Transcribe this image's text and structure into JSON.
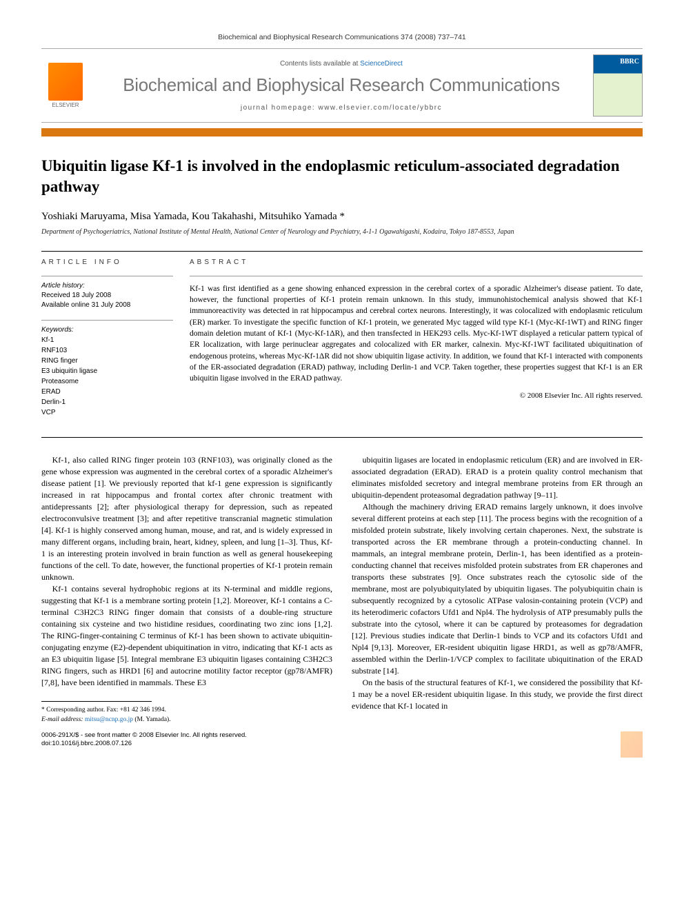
{
  "header": {
    "citation": "Biochemical and Biophysical Research Communications 374 (2008) 737–741",
    "contents_prefix": "Contents lists available at ",
    "contents_link": "ScienceDirect",
    "journal_name": "Biochemical and Biophysical Research Communications",
    "homepage_prefix": "journal homepage: ",
    "homepage_url": "www.elsevier.com/locate/ybbrc",
    "elsevier_label": "ELSEVIER"
  },
  "article": {
    "title": "Ubiquitin ligase Kf-1 is involved in the endoplasmic reticulum-associated degradation pathway",
    "authors": "Yoshiaki Maruyama, Misa Yamada, Kou Takahashi, Mitsuhiko Yamada *",
    "affiliation": "Department of Psychogeriatrics, National Institute of Mental Health, National Center of Neurology and Psychiatry, 4-1-1 Ogawahigashi, Kodaira, Tokyo 187-8553, Japan"
  },
  "info": {
    "heading": "ARTICLE INFO",
    "history_label": "Article history:",
    "received": "Received 18 July 2008",
    "online": "Available online 31 July 2008",
    "keywords_label": "Keywords:",
    "keywords": [
      "Kf-1",
      "RNF103",
      "RING finger",
      "E3 ubiquitin ligase",
      "Proteasome",
      "ERAD",
      "Derlin-1",
      "VCP"
    ]
  },
  "abstract": {
    "heading": "ABSTRACT",
    "text": "Kf-1 was first identified as a gene showing enhanced expression in the cerebral cortex of a sporadic Alzheimer's disease patient. To date, however, the functional properties of Kf-1 protein remain unknown. In this study, immunohistochemical analysis showed that Kf-1 immunoreactivity was detected in rat hippocampus and cerebral cortex neurons. Interestingly, it was colocalized with endoplasmic reticulum (ER) marker. To investigate the specific function of Kf-1 protein, we generated Myc tagged wild type Kf-1 (Myc-Kf-1WT) and RING finger domain deletion mutant of Kf-1 (Myc-Kf-1ΔR), and then transfected in HEK293 cells. Myc-Kf-1WT displayed a reticular pattern typical of ER localization, with large perinuclear aggregates and colocalized with ER marker, calnexin. Myc-Kf-1WT facilitated ubiquitination of endogenous proteins, whereas Myc-Kf-1ΔR did not show ubiquitin ligase activity. In addition, we found that Kf-1 interacted with components of the ER-associated degradation (ERAD) pathway, including Derlin-1 and VCP. Taken together, these properties suggest that Kf-1 is an ER ubiquitin ligase involved in the ERAD pathway.",
    "copyright": "© 2008 Elsevier Inc. All rights reserved."
  },
  "body": {
    "col1": {
      "p1": "Kf-1, also called RING finger protein 103 (RNF103), was originally cloned as the gene whose expression was augmented in the cerebral cortex of a sporadic Alzheimer's disease patient [1]. We previously reported that kf-1 gene expression is significantly increased in rat hippocampus and frontal cortex after chronic treatment with antidepressants [2]; after physiological therapy for depression, such as repeated electroconvulsive treatment [3]; and after repetitive transcranial magnetic stimulation [4]. Kf-1 is highly conserved among human, mouse, and rat, and is widely expressed in many different organs, including brain, heart, kidney, spleen, and lung [1–3]. Thus, Kf-1 is an interesting protein involved in brain function as well as general housekeeping functions of the cell. To date, however, the functional properties of Kf-1 protein remain unknown.",
      "p2": "Kf-1 contains several hydrophobic regions at its N-terminal and middle regions, suggesting that Kf-1 is a membrane sorting protein [1,2]. Moreover, Kf-1 contains a C-terminal C3H2C3 RING finger domain that consists of a double-ring structure containing six cysteine and two histidine residues, coordinating two zinc ions [1,2]. The RING-finger-containing C terminus of Kf-1 has been shown to activate ubiquitin-conjugating enzyme (E2)-dependent ubiquitination in vitro, indicating that Kf-1 acts as an E3 ubiquitin ligase [5]. Integral membrane E3 ubiquitin ligases containing C3H2C3 RING fingers, such as HRD1 [6] and autocrine motility factor receptor (gp78/AMFR) [7,8], have been identified in mammals. These E3"
    },
    "col2": {
      "p1": "ubiquitin ligases are located in endoplasmic reticulum (ER) and are involved in ER-associated degradation (ERAD). ERAD is a protein quality control mechanism that eliminates misfolded secretory and integral membrane proteins from ER through an ubiquitin-dependent proteasomal degradation pathway [9–11].",
      "p2": "Although the machinery driving ERAD remains largely unknown, it does involve several different proteins at each step [11]. The process begins with the recognition of a misfolded protein substrate, likely involving certain chaperones. Next, the substrate is transported across the ER membrane through a protein-conducting channel. In mammals, an integral membrane protein, Derlin-1, has been identified as a protein-conducting channel that receives misfolded protein substrates from ER chaperones and transports these substrates [9]. Once substrates reach the cytosolic side of the membrane, most are polyubiquitylated by ubiquitin ligases. The polyubiquitin chain is subsequently recognized by a cytosolic ATPase valosin-containing protein (VCP) and its heterodimeric cofactors Ufd1 and Npl4. The hydrolysis of ATP presumably pulls the substrate into the cytosol, where it can be captured by proteasomes for degradation [12]. Previous studies indicate that Derlin-1 binds to VCP and its cofactors Ufd1 and Npl4 [9,13]. Moreover, ER-resident ubiquitin ligase HRD1, as well as gp78/AMFR, assembled within the Derlin-1/VCP complex to facilitate ubiquitination of the ERAD substrate [14].",
      "p3": "On the basis of the structural features of Kf-1, we considered the possibility that Kf-1 may be a novel ER-resident ubiquitin ligase. In this study, we provide the first direct evidence that Kf-1 located in"
    }
  },
  "footer": {
    "corr_label": "* Corresponding author. Fax: +81 42 346 1994.",
    "email_label": "E-mail address:",
    "email": "mitsu@ncnp.go.jp",
    "email_name": "(M. Yamada).",
    "copyright_line": "0006-291X/$ - see front matter © 2008 Elsevier Inc. All rights reserved.",
    "doi": "doi:10.1016/j.bbrc.2008.07.126"
  }
}
